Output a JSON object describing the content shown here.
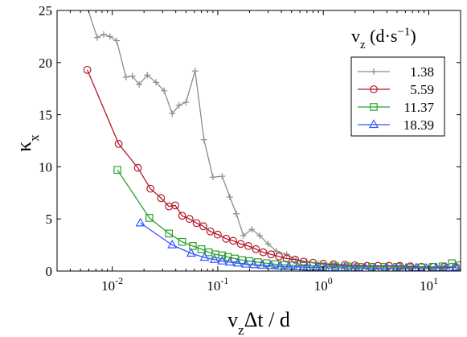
{
  "chart_data": {
    "type": "line",
    "title": "",
    "xlabel": "v_z Δt / d",
    "ylabel": "κ_x",
    "xscale": "log",
    "xlim": [
      0.003,
      20
    ],
    "ylim": [
      0,
      25
    ],
    "xticks": [
      {
        "value": 0.01,
        "base": "10",
        "exp": "-2"
      },
      {
        "value": 0.1,
        "base": "10",
        "exp": "-1"
      },
      {
        "value": 1,
        "base": "10",
        "exp": "0"
      },
      {
        "value": 10,
        "base": "10",
        "exp": "1"
      }
    ],
    "yticks": [
      {
        "value": 0,
        "label": "0"
      },
      {
        "value": 5,
        "label": "5"
      },
      {
        "value": 10,
        "label": "10"
      },
      {
        "value": 15,
        "label": "15"
      },
      {
        "value": 20,
        "label": "20"
      },
      {
        "value": 25,
        "label": "25"
      }
    ],
    "grid": false,
    "legend": {
      "title": "v_z (d·s^-1)",
      "placement": "top-right"
    },
    "series": [
      {
        "name": "1.38",
        "color": "#8c8c8c",
        "marker": "plus",
        "points": [
          [
            0.0055,
            26.0
          ],
          [
            0.0072,
            22.4
          ],
          [
            0.0083,
            22.7
          ],
          [
            0.0095,
            22.5
          ],
          [
            0.011,
            22.1
          ],
          [
            0.0135,
            18.6
          ],
          [
            0.0155,
            18.7
          ],
          [
            0.018,
            17.9
          ],
          [
            0.0215,
            18.8
          ],
          [
            0.026,
            18.1
          ],
          [
            0.031,
            17.3
          ],
          [
            0.037,
            15.1
          ],
          [
            0.043,
            15.9
          ],
          [
            0.05,
            16.2
          ],
          [
            0.061,
            19.2
          ],
          [
            0.074,
            12.6
          ],
          [
            0.09,
            9.0
          ],
          [
            0.11,
            9.1
          ],
          [
            0.13,
            7.1
          ],
          [
            0.15,
            5.5
          ],
          [
            0.175,
            3.4
          ],
          [
            0.21,
            4.0
          ],
          [
            0.25,
            3.4
          ],
          [
            0.3,
            2.6
          ],
          [
            0.36,
            1.9
          ],
          [
            0.45,
            1.6
          ],
          [
            0.55,
            1.1
          ],
          [
            0.7,
            0.9
          ],
          [
            0.9,
            0.7
          ],
          [
            1.2,
            0.55
          ],
          [
            1.6,
            0.5
          ],
          [
            2.2,
            0.45
          ],
          [
            3.0,
            0.45
          ],
          [
            4.0,
            0.4
          ],
          [
            5.5,
            0.4
          ],
          [
            7.5,
            0.35
          ],
          [
            10.0,
            0.35
          ],
          [
            13.0,
            0.35
          ],
          [
            17.0,
            0.35
          ]
        ]
      },
      {
        "name": "5.59",
        "color": "#b2182b",
        "marker": "circle",
        "points": [
          [
            0.0058,
            19.3
          ],
          [
            0.0115,
            12.2
          ],
          [
            0.0175,
            9.9
          ],
          [
            0.023,
            7.9
          ],
          [
            0.029,
            7.0
          ],
          [
            0.0345,
            6.2
          ],
          [
            0.0395,
            6.3
          ],
          [
            0.046,
            5.3
          ],
          [
            0.054,
            5.0
          ],
          [
            0.063,
            4.6
          ],
          [
            0.073,
            4.3
          ],
          [
            0.085,
            3.8
          ],
          [
            0.1,
            3.5
          ],
          [
            0.12,
            3.1
          ],
          [
            0.14,
            2.9
          ],
          [
            0.165,
            2.6
          ],
          [
            0.195,
            2.4
          ],
          [
            0.23,
            2.1
          ],
          [
            0.27,
            1.8
          ],
          [
            0.32,
            1.6
          ],
          [
            0.38,
            1.4
          ],
          [
            0.45,
            1.2
          ],
          [
            0.54,
            1.1
          ],
          [
            0.65,
            0.9
          ],
          [
            0.8,
            0.8
          ],
          [
            1.0,
            0.7
          ],
          [
            1.25,
            0.65
          ],
          [
            1.6,
            0.6
          ],
          [
            2.0,
            0.55
          ],
          [
            2.6,
            0.5
          ],
          [
            3.3,
            0.5
          ],
          [
            4.2,
            0.5
          ],
          [
            5.3,
            0.5
          ],
          [
            6.7,
            0.45
          ],
          [
            8.5,
            0.4
          ],
          [
            11.0,
            0.4
          ],
          [
            14.0,
            0.4
          ],
          [
            18.0,
            0.4
          ]
        ]
      },
      {
        "name": "11.37",
        "color": "#2ca02c",
        "marker": "square",
        "points": [
          [
            0.0112,
            9.7
          ],
          [
            0.0225,
            5.1
          ],
          [
            0.0345,
            3.6
          ],
          [
            0.046,
            2.8
          ],
          [
            0.058,
            2.4
          ],
          [
            0.07,
            2.1
          ],
          [
            0.082,
            1.8
          ],
          [
            0.095,
            1.6
          ],
          [
            0.11,
            1.5
          ],
          [
            0.125,
            1.35
          ],
          [
            0.145,
            1.2
          ],
          [
            0.17,
            1.05
          ],
          [
            0.2,
            0.95
          ],
          [
            0.24,
            0.85
          ],
          [
            0.29,
            0.75
          ],
          [
            0.35,
            0.65
          ],
          [
            0.43,
            0.6
          ],
          [
            0.52,
            0.55
          ],
          [
            0.65,
            0.5
          ],
          [
            0.8,
            0.5
          ],
          [
            1.0,
            0.45
          ],
          [
            1.3,
            0.45
          ],
          [
            1.7,
            0.45
          ],
          [
            2.2,
            0.4
          ],
          [
            2.9,
            0.4
          ],
          [
            3.8,
            0.4
          ],
          [
            5.0,
            0.4
          ],
          [
            6.5,
            0.35
          ],
          [
            8.5,
            0.35
          ],
          [
            11.0,
            0.4
          ],
          [
            13.5,
            0.45
          ],
          [
            16.5,
            0.75
          ],
          [
            19.5,
            0.55
          ]
        ]
      },
      {
        "name": "18.39",
        "color": "#3355ff",
        "marker": "triangle",
        "points": [
          [
            0.0185,
            4.6
          ],
          [
            0.037,
            2.5
          ],
          [
            0.056,
            1.7
          ],
          [
            0.075,
            1.3
          ],
          [
            0.093,
            1.1
          ],
          [
            0.11,
            0.95
          ],
          [
            0.13,
            0.85
          ],
          [
            0.155,
            0.75
          ],
          [
            0.185,
            0.65
          ],
          [
            0.22,
            0.6
          ],
          [
            0.265,
            0.55
          ],
          [
            0.32,
            0.5
          ],
          [
            0.39,
            0.45
          ],
          [
            0.47,
            0.4
          ],
          [
            0.57,
            0.4
          ],
          [
            0.7,
            0.35
          ],
          [
            0.86,
            0.35
          ],
          [
            1.05,
            0.3
          ],
          [
            1.3,
            0.3
          ],
          [
            1.6,
            0.3
          ],
          [
            2.0,
            0.3
          ],
          [
            2.5,
            0.25
          ],
          [
            3.1,
            0.25
          ],
          [
            3.9,
            0.25
          ],
          [
            4.9,
            0.25
          ],
          [
            6.1,
            0.25
          ],
          [
            7.6,
            0.3
          ],
          [
            9.5,
            0.25
          ],
          [
            11.8,
            0.3
          ],
          [
            14.6,
            0.3
          ],
          [
            18.0,
            0.35
          ]
        ]
      }
    ]
  }
}
